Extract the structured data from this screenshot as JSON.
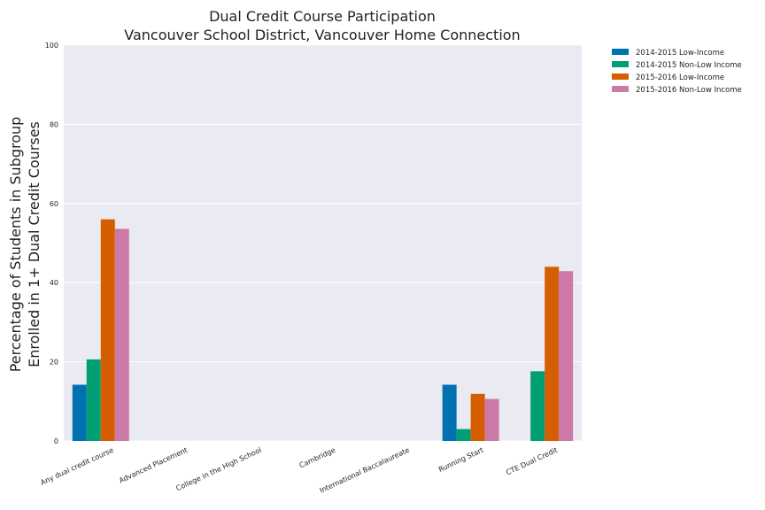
{
  "chart_data": {
    "type": "bar",
    "title": "Dual Credit Course Participation",
    "subtitle": "Vancouver School District, Vancouver Home Connection",
    "xlabel": "",
    "ylabel_lines": [
      "Percentage of Students in Subgroup",
      "Enrolled in 1+ Dual Credit Courses"
    ],
    "ylim": [
      0,
      100
    ],
    "yticks": [
      0,
      20,
      40,
      60,
      80,
      100
    ],
    "grid": true,
    "legend_position": "outside-top-right",
    "categories": [
      "Any dual credit course",
      "Advanced Placement",
      "College in the High School",
      "Cambridge",
      "International Baccalaureate",
      "Running Start",
      "CTE Dual Credit"
    ],
    "series": [
      {
        "name": "2014-2015 Low-Income",
        "color": "#0072b2",
        "values": [
          14.2,
          0,
          0,
          0,
          0,
          14.2,
          0
        ]
      },
      {
        "name": "2014-2015 Non-Low Income",
        "color": "#009e73",
        "values": [
          20.6,
          0,
          0,
          0,
          0,
          3.0,
          17.6
        ]
      },
      {
        "name": "2015-2016 Low-Income",
        "color": "#d55e00",
        "values": [
          56.0,
          0,
          0,
          0,
          0,
          11.9,
          44.0
        ]
      },
      {
        "name": "2015-2016 Non-Low Income",
        "color": "#cc79a7",
        "values": [
          53.6,
          0,
          0,
          0,
          0,
          10.6,
          42.9
        ]
      }
    ]
  }
}
